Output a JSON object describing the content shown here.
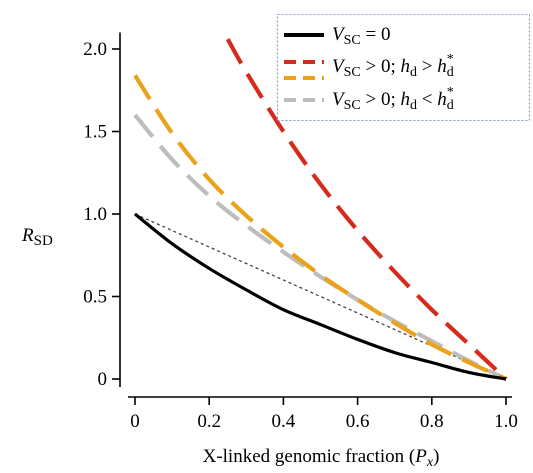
{
  "chart_data": {
    "type": "line",
    "xlabel": {
      "text": "X-linked genomic fraction (",
      "var": "P",
      "sub": "x",
      "close": ")"
    },
    "ylabel": {
      "var": "R",
      "sub": "SD"
    },
    "xlim": [
      0,
      1
    ],
    "ylim": [
      0,
      2.1
    ],
    "x_ticks": [
      0,
      0.2,
      0.4,
      0.6,
      0.8,
      1.0
    ],
    "x_tick_labels": [
      "0",
      "0.2",
      "0.4",
      "0.6",
      "0.8",
      "1.0"
    ],
    "y_ticks": [
      0,
      0.5,
      1.0,
      1.5,
      2.0
    ],
    "y_tick_labels": [
      "0",
      "0.5",
      "1.0",
      "1.5",
      "2.0"
    ],
    "grid": false,
    "legend_position": "top-right",
    "series": [
      {
        "id": "vsc0",
        "color": "#000000",
        "dash": "solid",
        "legend": {
          "v": "V",
          "vsub": "SC",
          "tail": " = 0"
        },
        "points": [
          [
            0,
            1.0
          ],
          [
            0.1,
            0.82
          ],
          [
            0.2,
            0.67
          ],
          [
            0.3,
            0.54
          ],
          [
            0.4,
            0.42
          ],
          [
            0.5,
            0.33
          ],
          [
            0.6,
            0.24
          ],
          [
            0.7,
            0.16
          ],
          [
            0.8,
            0.1
          ],
          [
            0.9,
            0.04
          ],
          [
            1.0,
            0.0
          ]
        ]
      },
      {
        "id": "vsc-high",
        "color": "#d62a1d",
        "dash": "long",
        "legend": {
          "v": "V",
          "vsub": "SC",
          "mid": " > 0; ",
          "h": "h",
          "hsub": "d",
          "op": " > ",
          "h2": "h",
          "h2sup": "*",
          "h2sub": "d"
        },
        "points": [
          [
            0.25,
            2.06
          ],
          [
            0.3,
            1.86
          ],
          [
            0.4,
            1.5
          ],
          [
            0.5,
            1.18
          ],
          [
            0.6,
            0.9
          ],
          [
            0.7,
            0.65
          ],
          [
            0.8,
            0.42
          ],
          [
            0.9,
            0.21
          ],
          [
            1.0,
            0.0
          ]
        ]
      },
      {
        "id": "vsc-orange",
        "color": "#eba21b",
        "dash": "long",
        "legend": {
          "v": "V",
          "vsub": "SC",
          "mid": " > 0; ",
          "h": "h",
          "hsub": "d",
          "op": " > ",
          "h2": "h",
          "h2sup": "*",
          "h2sub": "d"
        },
        "points": [
          [
            0,
            1.84
          ],
          [
            0.1,
            1.49
          ],
          [
            0.2,
            1.21
          ],
          [
            0.3,
            0.99
          ],
          [
            0.4,
            0.8
          ],
          [
            0.5,
            0.63
          ],
          [
            0.6,
            0.48
          ],
          [
            0.7,
            0.34
          ],
          [
            0.8,
            0.21
          ],
          [
            0.9,
            0.1
          ],
          [
            1.0,
            0.0
          ]
        ]
      },
      {
        "id": "vsc-low",
        "color": "#bdbdbd",
        "dash": "long",
        "legend": {
          "v": "V",
          "vsub": "SC",
          "mid": " > 0; ",
          "h": "h",
          "hsub": "d",
          "op": " < ",
          "h2": "h",
          "h2sup": "*",
          "h2sub": "d"
        },
        "points": [
          [
            0,
            1.6
          ],
          [
            0.1,
            1.33
          ],
          [
            0.2,
            1.11
          ],
          [
            0.3,
            0.93
          ],
          [
            0.4,
            0.77
          ],
          [
            0.5,
            0.62
          ],
          [
            0.6,
            0.48
          ],
          [
            0.7,
            0.35
          ],
          [
            0.8,
            0.23
          ],
          [
            0.9,
            0.11
          ],
          [
            1.0,
            0.0
          ]
        ]
      },
      {
        "id": "reference",
        "color": "#444444",
        "dash": "dotted",
        "points": [
          [
            0,
            1.0
          ],
          [
            1.0,
            0.0
          ]
        ]
      }
    ]
  }
}
